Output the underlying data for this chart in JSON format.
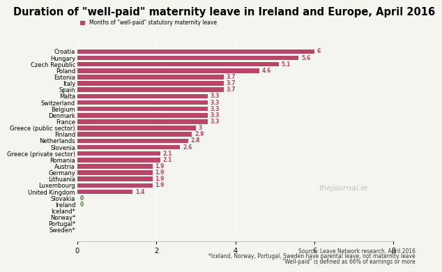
{
  "title": "Duration of \"well-paid\" maternity leave in Ireland and Europe, April 2016",
  "legend_label": "Months of \"well-paid\" statutory maternity leave",
  "categories": [
    "Croatia",
    "Hungary",
    "Czech Republic",
    "Poland",
    "Estonia",
    "Italy",
    "Spain",
    "Malta",
    "Switzerland",
    "Belgium",
    "Denmark",
    "France",
    "Greece (public sector)",
    "Finland",
    "Netherlands",
    "Slovenia",
    "Greece (private sector)",
    "Romania",
    "Austria",
    "Germany",
    "Lithuania",
    "Luxembourg",
    "United Kingdom",
    "Slovakia",
    "Ireland",
    "Iceland*",
    "Norway*",
    "Portugal*",
    "Sweden*"
  ],
  "values": [
    6,
    5.6,
    5.1,
    4.6,
    3.7,
    3.7,
    3.7,
    3.3,
    3.3,
    3.3,
    3.3,
    3.3,
    3,
    2.9,
    2.8,
    2.6,
    2.1,
    2.1,
    1.9,
    1.9,
    1.9,
    1.9,
    1.4,
    0,
    0,
    0,
    0,
    0,
    0
  ],
  "bar_color": "#b5476b",
  "value_color": "#b5476b",
  "zero_value_color": "#4a7c3f",
  "xlim": [
    0,
    8
  ],
  "xticks": [
    0,
    2,
    4,
    6,
    8
  ],
  "source_text": "Source: Leave Network research, April 2016",
  "footnote1": "*Iceland, Norway, Portugal, Sweden have parental leave, not maternity leave",
  "footnote2": "\"Well-paid\" is defined as 66% of earnings or more",
  "watermark": "thejournal.ie",
  "title_fontsize": 10.5,
  "axis_fontsize": 7,
  "label_fontsize": 6.0,
  "value_fontsize": 5.5,
  "footnote_fontsize": 5.5,
  "watermark_fontsize": 8,
  "bg_color": "#f5f5f0"
}
